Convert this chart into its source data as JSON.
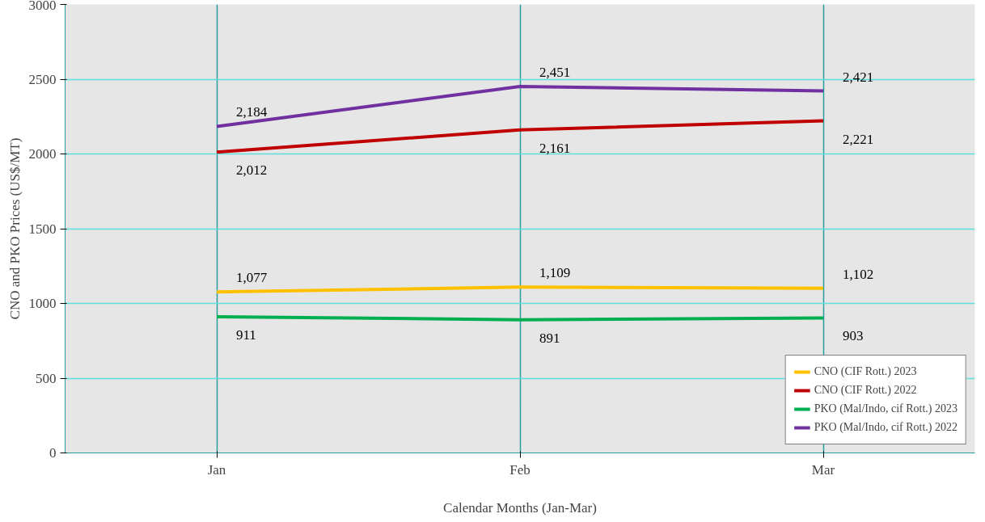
{
  "chart_data": {
    "type": "line",
    "xlabel": "Calendar Months (Jan-Mar)",
    "ylabel": "CNO and PKO Prices (US$/MT)",
    "categories": [
      "Jan",
      "Feb",
      "Mar"
    ],
    "series": [
      {
        "name": "CNO (CIF Rott.) 2023",
        "color": "#ffc000",
        "values": [
          1077,
          1109,
          1102
        ],
        "value_labels": [
          "1,077",
          "1,109",
          "1,102"
        ]
      },
      {
        "name": "CNO (CIF Rott.) 2022",
        "color": "#c00000",
        "values": [
          2012,
          2161,
          2221
        ],
        "value_labels": [
          "2,012",
          "2,161",
          "2,221"
        ]
      },
      {
        "name": "PKO (Mal/Indo, cif Rott.) 2023",
        "color": "#00b050",
        "values": [
          911,
          891,
          903
        ],
        "value_labels": [
          "911",
          "891",
          "903"
        ]
      },
      {
        "name": "PKO (Mal/Indo, cif Rott.) 2022",
        "color": "#7030a0",
        "values": [
          2184,
          2451,
          2421
        ],
        "value_labels": [
          "2,184",
          "2,451",
          "2,421"
        ]
      }
    ],
    "ylim": [
      0,
      3000
    ],
    "yticks": [
      0,
      500,
      1000,
      1500,
      2000,
      2500,
      3000
    ],
    "grid": true,
    "legend": "bottom right",
    "marker": "none",
    "line_style": "solid"
  }
}
